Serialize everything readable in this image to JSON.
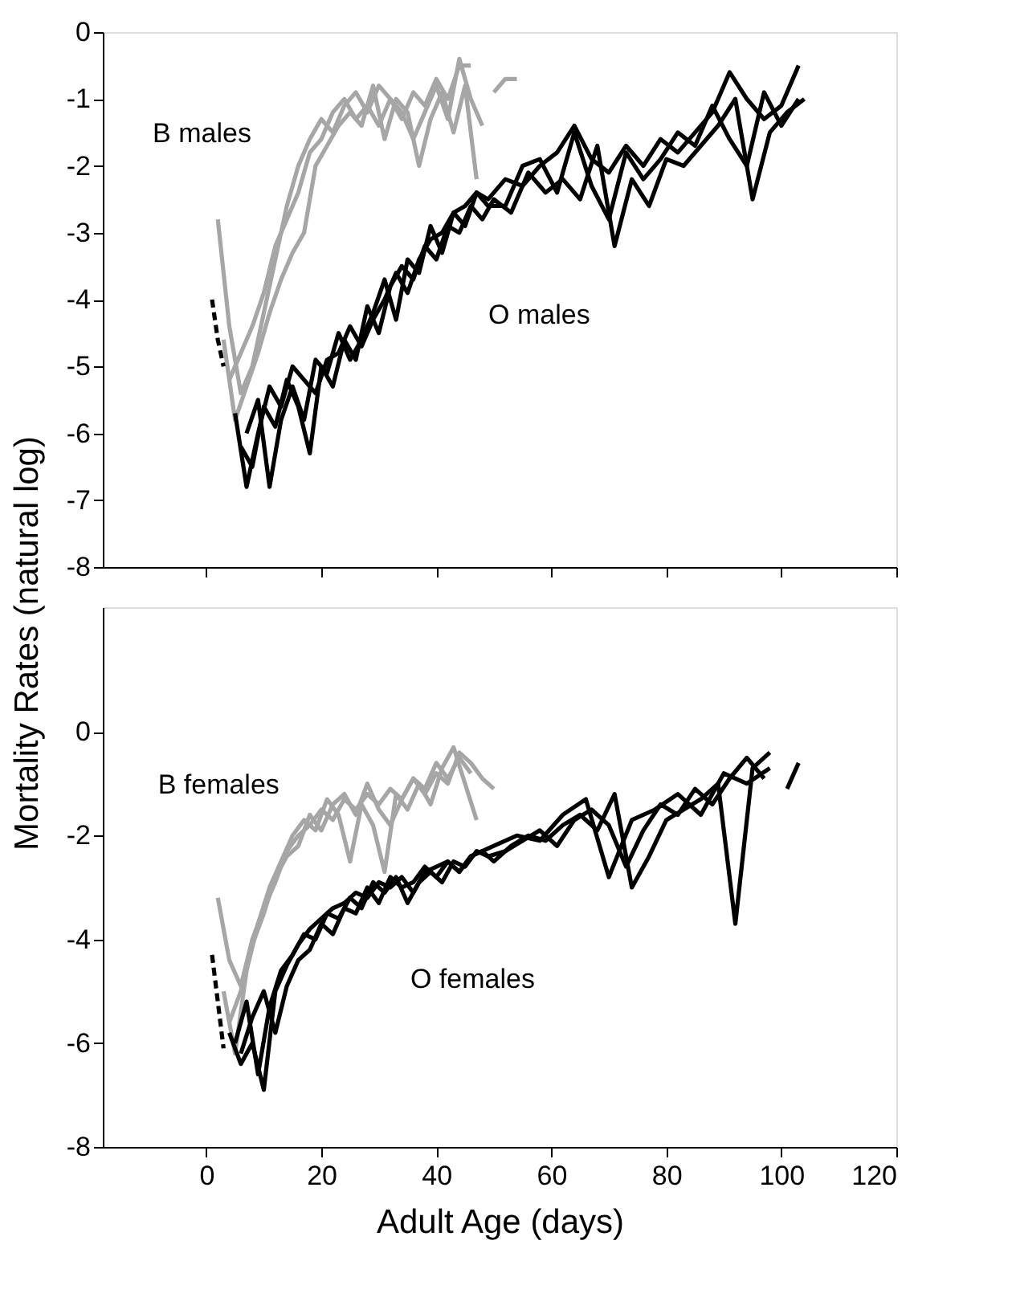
{
  "chart_data": [
    {
      "type": "line",
      "ylabel": "Mortality Rates (natural log)",
      "xlim": [
        -18,
        120
      ],
      "xticks": [
        0,
        20,
        40,
        60,
        80,
        100,
        120
      ],
      "ylim": [
        -8,
        0
      ],
      "yticks": [
        -8,
        -7,
        -6,
        -5,
        -4,
        -3,
        -2,
        -1,
        0
      ],
      "tick_labels": "y",
      "grid": false,
      "annotations": [
        "B males",
        "O males"
      ],
      "series": [
        {
          "color": "#a6a6a6",
          "x": [
            2,
            4,
            6,
            8,
            10,
            12,
            14,
            16,
            18,
            20,
            22,
            24,
            26,
            28,
            30,
            32,
            34,
            36,
            38,
            40,
            42,
            44,
            46
          ],
          "values": [
            -2.8,
            -4.4,
            -5.4,
            -5.0,
            -4.2,
            -3.4,
            -2.6,
            -2.0,
            -1.6,
            -1.3,
            -1.5,
            -1.1,
            -0.9,
            -1.2,
            -0.8,
            -1.0,
            -1.3,
            -0.9,
            -1.1,
            -0.7,
            -1.0,
            -0.5,
            -0.5
          ]
        },
        {
          "color": "#a6a6a6",
          "x": [
            3,
            5,
            7,
            9,
            11,
            13,
            15,
            17,
            19,
            21,
            23,
            25,
            27,
            29,
            31,
            33,
            35,
            37,
            39,
            41,
            43,
            45,
            47
          ],
          "values": [
            -4.6,
            -5.8,
            -5.3,
            -4.8,
            -4.2,
            -3.7,
            -3.3,
            -3.0,
            -2.0,
            -1.7,
            -1.4,
            -1.2,
            -1.4,
            -0.8,
            -1.6,
            -1.0,
            -1.2,
            -2.0,
            -1.3,
            -0.9,
            -1.5,
            -0.8,
            -2.2
          ]
        },
        {
          "color": "#a6a6a6",
          "x": [
            4,
            6,
            8,
            10,
            12,
            14,
            16,
            18,
            20,
            22,
            24,
            26,
            28,
            30,
            32,
            34,
            36,
            38,
            40,
            42,
            44,
            46,
            48
          ],
          "values": [
            -5.2,
            -4.8,
            -4.4,
            -3.9,
            -3.2,
            -2.8,
            -2.4,
            -1.8,
            -1.6,
            -1.2,
            -1.0,
            -1.3,
            -1.1,
            -1.4,
            -1.0,
            -1.2,
            -1.6,
            -1.2,
            -0.8,
            -1.3,
            -0.4,
            -1.0,
            -1.4
          ]
        },
        {
          "color": "#a6a6a6",
          "x": [
            50,
            52,
            54
          ],
          "values": [
            -0.9,
            -0.7,
            -0.7
          ]
        },
        {
          "color": "#000000",
          "line_style": "dashed",
          "x": [
            1,
            2,
            3
          ],
          "values": [
            -4.0,
            -4.6,
            -5.0
          ]
        },
        {
          "color": "#000000",
          "x": [
            5,
            7,
            9,
            11,
            13,
            15,
            17,
            19,
            21,
            23,
            25,
            27,
            29,
            31,
            33,
            35,
            37,
            39,
            41,
            43,
            45,
            47,
            49,
            52,
            55,
            58,
            61,
            64,
            67,
            70,
            73,
            76,
            79,
            82,
            85,
            88,
            91,
            94,
            97,
            100,
            103
          ],
          "values": [
            -5.7,
            -6.8,
            -6.0,
            -5.3,
            -5.6,
            -5.0,
            -5.2,
            -5.4,
            -4.9,
            -4.8,
            -4.4,
            -4.7,
            -4.3,
            -4.0,
            -3.6,
            -3.9,
            -3.4,
            -3.1,
            -3.0,
            -2.7,
            -2.6,
            -2.4,
            -2.5,
            -2.2,
            -2.3,
            -2.0,
            -1.8,
            -1.4,
            -1.9,
            -2.1,
            -1.7,
            -2.0,
            -1.6,
            -1.8,
            -1.5,
            -1.2,
            -0.6,
            -1.0,
            -1.3,
            -1.1,
            -0.5
          ]
        },
        {
          "color": "#000000",
          "x": [
            6,
            8,
            10,
            12,
            14,
            16,
            18,
            20,
            22,
            24,
            26,
            28,
            30,
            32,
            34,
            36,
            38,
            40,
            42,
            44,
            46,
            48,
            50,
            53,
            56,
            59,
            62,
            65,
            68,
            71,
            74,
            77,
            80,
            83,
            86,
            89,
            92,
            95,
            98,
            101,
            104
          ],
          "values": [
            -6.2,
            -6.5,
            -5.6,
            -5.9,
            -5.2,
            -5.6,
            -6.3,
            -5.0,
            -5.3,
            -4.6,
            -4.9,
            -4.1,
            -4.5,
            -3.8,
            -3.5,
            -3.7,
            -3.2,
            -3.4,
            -2.9,
            -3.0,
            -2.6,
            -2.8,
            -2.5,
            -2.7,
            -2.1,
            -2.4,
            -2.2,
            -2.5,
            -1.7,
            -3.2,
            -2.2,
            -2.6,
            -1.9,
            -2.0,
            -1.7,
            -1.4,
            -1.0,
            -2.5,
            -1.5,
            -1.2,
            -1.0
          ]
        },
        {
          "color": "#000000",
          "x": [
            7,
            9,
            11,
            13,
            15,
            17,
            19,
            21,
            23,
            25,
            27,
            29,
            31,
            33,
            35,
            37,
            39,
            41,
            43,
            45,
            47,
            49,
            52,
            55,
            58,
            61,
            64,
            67,
            70,
            73,
            76,
            79,
            82,
            85,
            88,
            91,
            94,
            97,
            100,
            103
          ],
          "values": [
            -6.0,
            -5.5,
            -6.8,
            -5.8,
            -5.3,
            -5.8,
            -4.9,
            -5.1,
            -4.5,
            -4.9,
            -4.6,
            -4.2,
            -3.7,
            -4.3,
            -3.4,
            -3.6,
            -2.9,
            -3.3,
            -2.7,
            -2.9,
            -2.4,
            -2.6,
            -2.6,
            -2.0,
            -1.9,
            -2.4,
            -1.5,
            -2.3,
            -2.8,
            -1.8,
            -2.2,
            -1.9,
            -1.5,
            -1.7,
            -1.1,
            -1.6,
            -2.0,
            -0.9,
            -1.4,
            -1.0
          ]
        }
      ]
    },
    {
      "type": "line",
      "xlabel": "Adult Age (days)",
      "xlim": [
        -18,
        120
      ],
      "xticks": [
        0,
        20,
        40,
        60,
        80,
        100,
        120
      ],
      "ylim": [
        -8,
        2.4
      ],
      "yticks": [
        -8,
        -6,
        -4,
        -2,
        0
      ],
      "grid": false,
      "annotations": [
        "B females",
        "O females"
      ],
      "series": [
        {
          "color": "#a6a6a6",
          "x": [
            2,
            4,
            6,
            8,
            10,
            12,
            14,
            16,
            18,
            20,
            22,
            24,
            26,
            28,
            30,
            32,
            34,
            36,
            38,
            40,
            42,
            44,
            46,
            48,
            50
          ],
          "values": [
            -3.2,
            -4.4,
            -4.9,
            -4.0,
            -3.4,
            -2.9,
            -2.3,
            -2.0,
            -1.8,
            -1.5,
            -1.7,
            -1.3,
            -1.5,
            -1.2,
            -1.4,
            -1.1,
            -1.3,
            -0.9,
            -1.2,
            -0.8,
            -1.0,
            -0.4,
            -0.6,
            -0.9,
            -1.1
          ]
        },
        {
          "color": "#a6a6a6",
          "x": [
            3,
            5,
            7,
            9,
            11,
            13,
            15,
            17,
            19,
            21,
            23,
            25,
            27,
            29,
            31,
            33,
            35,
            37,
            39,
            41,
            43,
            45,
            47
          ],
          "values": [
            -5.0,
            -6.2,
            -4.6,
            -3.7,
            -3.0,
            -2.5,
            -2.0,
            -1.7,
            -1.9,
            -1.3,
            -1.6,
            -2.5,
            -1.4,
            -1.8,
            -2.7,
            -1.2,
            -1.5,
            -1.0,
            -1.4,
            -0.7,
            -0.3,
            -1.0,
            -1.7
          ]
        },
        {
          "color": "#a6a6a6",
          "x": [
            4,
            6,
            8,
            10,
            12,
            14,
            16,
            18,
            20,
            22,
            24,
            26,
            28,
            30,
            32,
            34,
            36,
            38,
            40,
            42,
            44,
            46
          ],
          "values": [
            -5.6,
            -5.0,
            -4.1,
            -3.5,
            -2.8,
            -2.4,
            -2.2,
            -1.6,
            -1.9,
            -1.4,
            -1.2,
            -1.6,
            -1.0,
            -1.5,
            -1.8,
            -1.3,
            -0.9,
            -1.1,
            -0.6,
            -0.9,
            -0.5,
            -0.8
          ]
        },
        {
          "color": "#000000",
          "line_style": "dashed",
          "x": [
            1,
            2,
            3
          ],
          "values": [
            -4.3,
            -5.2,
            -6.1
          ]
        },
        {
          "color": "#000000",
          "x": [
            4,
            6,
            8,
            10,
            12,
            14,
            16,
            18,
            20,
            22,
            24,
            26,
            28,
            30,
            32,
            34,
            36,
            38,
            40,
            42,
            44,
            46,
            48,
            50,
            53,
            56,
            59,
            62,
            65,
            68,
            71,
            74,
            77,
            80,
            83,
            86,
            89,
            92,
            95,
            98
          ],
          "values": [
            -5.8,
            -6.4,
            -6.0,
            -6.9,
            -5.0,
            -4.5,
            -4.1,
            -3.8,
            -3.6,
            -3.4,
            -3.3,
            -3.1,
            -3.2,
            -2.9,
            -3.0,
            -2.8,
            -3.1,
            -2.7,
            -2.6,
            -2.5,
            -2.7,
            -2.4,
            -2.3,
            -2.5,
            -2.2,
            -2.0,
            -2.1,
            -1.8,
            -1.6,
            -1.9,
            -1.2,
            -3.0,
            -2.4,
            -1.7,
            -1.5,
            -1.3,
            -1.0,
            -3.7,
            -0.7,
            -0.4
          ]
        },
        {
          "color": "#000000",
          "x": [
            5,
            7,
            9,
            11,
            13,
            15,
            17,
            19,
            21,
            23,
            25,
            27,
            29,
            31,
            33,
            35,
            37,
            39,
            41,
            43,
            45,
            47,
            49,
            52,
            55,
            58,
            61,
            64,
            67,
            70,
            73,
            76,
            79,
            82,
            85,
            88,
            91,
            94,
            97
          ],
          "values": [
            -6.0,
            -5.2,
            -6.6,
            -5.3,
            -4.6,
            -4.3,
            -3.9,
            -4.0,
            -3.5,
            -3.6,
            -3.2,
            -3.4,
            -2.9,
            -3.1,
            -2.8,
            -3.3,
            -2.9,
            -2.7,
            -2.9,
            -2.5,
            -2.6,
            -2.3,
            -2.4,
            -2.3,
            -2.1,
            -1.9,
            -2.2,
            -1.7,
            -1.5,
            -1.8,
            -2.6,
            -1.9,
            -1.4,
            -1.6,
            -1.1,
            -1.4,
            -0.9,
            -0.5,
            -0.9
          ]
        },
        {
          "color": "#000000",
          "x": [
            6,
            8,
            10,
            12,
            14,
            16,
            18,
            20,
            22,
            24,
            26,
            28,
            30,
            32,
            34,
            36,
            38,
            40,
            42,
            44,
            46,
            48,
            50,
            54,
            58,
            62,
            66,
            70,
            74,
            78,
            82,
            86,
            90,
            94,
            98
          ],
          "values": [
            -6.2,
            -5.5,
            -5.0,
            -5.8,
            -4.9,
            -4.4,
            -4.2,
            -3.7,
            -3.9,
            -3.4,
            -3.5,
            -3.0,
            -3.3,
            -2.8,
            -3.0,
            -2.9,
            -2.6,
            -2.8,
            -2.5,
            -2.7,
            -2.4,
            -2.3,
            -2.2,
            -2.0,
            -2.1,
            -1.6,
            -1.3,
            -2.8,
            -1.7,
            -1.5,
            -1.2,
            -1.6,
            -0.8,
            -1.0,
            -0.7
          ]
        },
        {
          "color": "#000000",
          "x": [
            101,
            103
          ],
          "values": [
            -1.1,
            -0.6
          ]
        }
      ]
    }
  ]
}
